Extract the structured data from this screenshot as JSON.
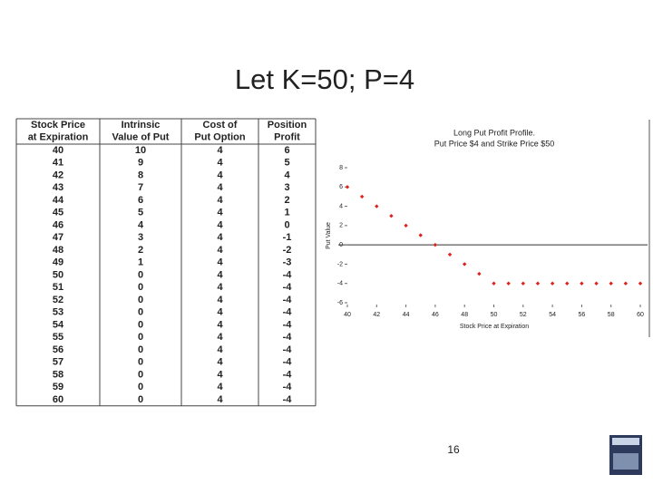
{
  "title": "Let K=50; P=4",
  "table": {
    "headers": [
      [
        "Stock Price",
        "at Expiration"
      ],
      [
        "Intrinsic",
        "Value of Put"
      ],
      [
        "Cost of",
        "Put Option"
      ],
      [
        "Position",
        "Profit"
      ]
    ],
    "rows": [
      [
        40,
        10,
        4,
        6
      ],
      [
        41,
        9,
        4,
        5
      ],
      [
        42,
        8,
        4,
        4
      ],
      [
        43,
        7,
        4,
        3
      ],
      [
        44,
        6,
        4,
        2
      ],
      [
        45,
        5,
        4,
        1
      ],
      [
        46,
        4,
        4,
        0
      ],
      [
        47,
        3,
        4,
        -1
      ],
      [
        48,
        2,
        4,
        -2
      ],
      [
        49,
        1,
        4,
        -3
      ],
      [
        50,
        0,
        4,
        -4
      ],
      [
        51,
        0,
        4,
        -4
      ],
      [
        52,
        0,
        4,
        -4
      ],
      [
        53,
        0,
        4,
        -4
      ],
      [
        54,
        0,
        4,
        -4
      ],
      [
        55,
        0,
        4,
        -4
      ],
      [
        56,
        0,
        4,
        -4
      ],
      [
        57,
        0,
        4,
        -4
      ],
      [
        58,
        0,
        4,
        -4
      ],
      [
        59,
        0,
        4,
        -4
      ],
      [
        60,
        0,
        4,
        -4
      ]
    ]
  },
  "chart_data": {
    "type": "scatter",
    "title": [
      "Long Put Profit Profile.",
      "Put Price $4 and Strike Price $50"
    ],
    "x_label": "Stock Price at Expiration",
    "y_label": "Put Value",
    "x": [
      40,
      41,
      42,
      43,
      44,
      45,
      46,
      47,
      48,
      49,
      50,
      51,
      52,
      53,
      54,
      55,
      56,
      57,
      58,
      59,
      60
    ],
    "values": [
      6,
      5,
      4,
      3,
      2,
      1,
      0,
      -1,
      -2,
      -3,
      -4,
      -4,
      -4,
      -4,
      -4,
      -4,
      -4,
      -4,
      -4,
      -4,
      -4
    ],
    "color": "#e0201b",
    "xlim": [
      40,
      60
    ],
    "xticks": [
      40,
      42,
      44,
      46,
      48,
      50,
      52,
      54,
      56,
      58,
      60
    ],
    "ylim": [
      -6,
      8
    ],
    "yticks": [
      -6,
      -4,
      -2,
      0,
      2,
      4,
      6,
      8
    ]
  },
  "page_number": "16"
}
